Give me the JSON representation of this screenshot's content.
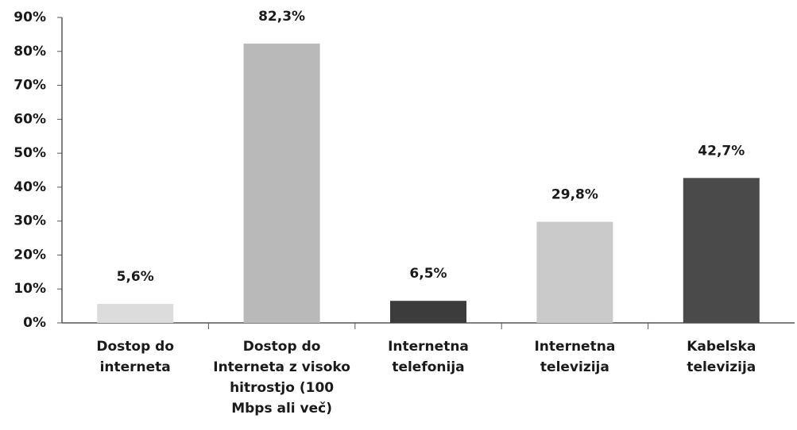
{
  "chart_data": {
    "type": "bar",
    "categories": [
      "Dostop do interneta",
      "Dostop do Interneta z visoko hitrostjo (100 Mbps ali več)",
      "Internetna telefonija",
      "Internetna televizija",
      "Kabelska televizija"
    ],
    "values": [
      5.6,
      82.3,
      6.5,
      29.8,
      42.7
    ],
    "value_labels": [
      "5,6%",
      "82,3%",
      "6,5%",
      "29,8%",
      "42,7%"
    ],
    "colors": [
      "#dcdcdc",
      "#b9b9b9",
      "#3c3c3c",
      "#cacaca",
      "#4a4a4a"
    ],
    "ylim": [
      0,
      90
    ],
    "yticks": [
      {
        "value": 0,
        "label": "0%"
      },
      {
        "value": 10,
        "label": "10%"
      },
      {
        "value": 20,
        "label": "20%"
      },
      {
        "value": 30,
        "label": "30%"
      },
      {
        "value": 40,
        "label": "40%"
      },
      {
        "value": 50,
        "label": "50%"
      },
      {
        "value": 60,
        "label": "60%"
      },
      {
        "value": 70,
        "label": "70%"
      },
      {
        "value": 80,
        "label": "80%"
      },
      {
        "value": 90,
        "label": "90%"
      }
    ],
    "grid": false
  }
}
